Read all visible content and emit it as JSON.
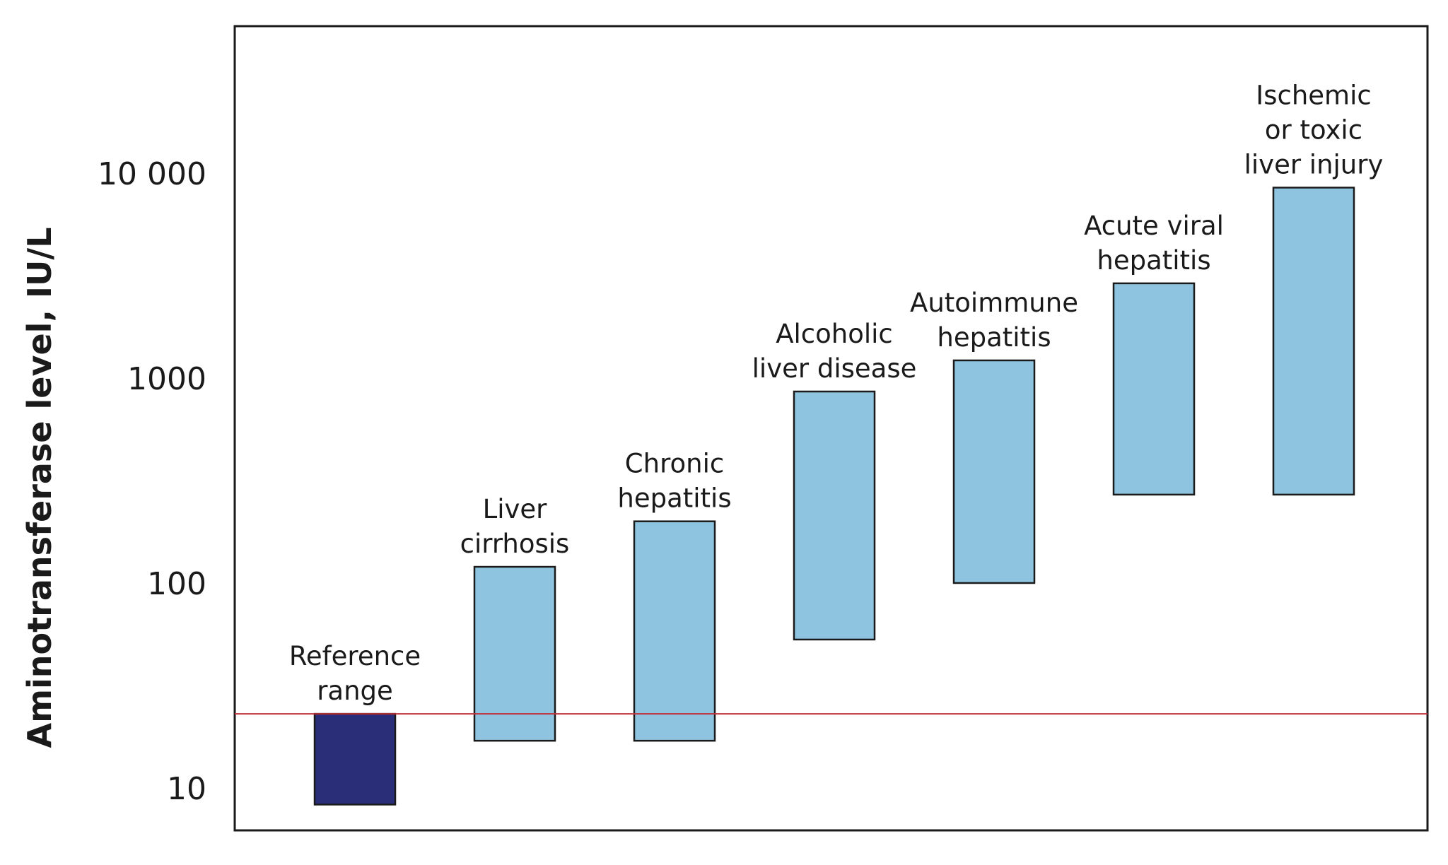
{
  "chart_data": {
    "type": "bar",
    "subtype": "floating-range-bar",
    "scale": "log",
    "ylabel": "Aminotransferase level, IU/L",
    "ylim": [
      7,
      50000
    ],
    "yticks": [
      {
        "value": 10,
        "label": "10"
      },
      {
        "value": 100,
        "label": "100"
      },
      {
        "value": 1000,
        "label": "1000"
      },
      {
        "value": 10000,
        "label": "10 000"
      }
    ],
    "reference_line": {
      "value": 23,
      "color": "#c0303a"
    },
    "grid": false,
    "categories": [
      {
        "lines": [
          "Reference",
          "range"
        ],
        "low": 8.3,
        "high": 23,
        "color": "#2a2d78"
      },
      {
        "lines": [
          "Liver",
          "cirrhosis"
        ],
        "low": 17,
        "high": 120,
        "color": "#8fc4e0"
      },
      {
        "lines": [
          "Chronic",
          "hepatitis"
        ],
        "low": 17,
        "high": 200,
        "color": "#8fc4e0"
      },
      {
        "lines": [
          "Alcoholic",
          "liver disease"
        ],
        "low": 53,
        "high": 860,
        "color": "#8fc4e0"
      },
      {
        "lines": [
          "Autoimmune",
          "hepatitis"
        ],
        "low": 100,
        "high": 1220,
        "color": "#8fc4e0"
      },
      {
        "lines": [
          "Acute viral",
          "hepatitis"
        ],
        "low": 270,
        "high": 2900,
        "color": "#8fc4e0"
      },
      {
        "lines": [
          "Ischemic",
          "or toxic",
          "liver injury"
        ],
        "low": 270,
        "high": 8500,
        "color": "#8fc4e0"
      }
    ]
  }
}
